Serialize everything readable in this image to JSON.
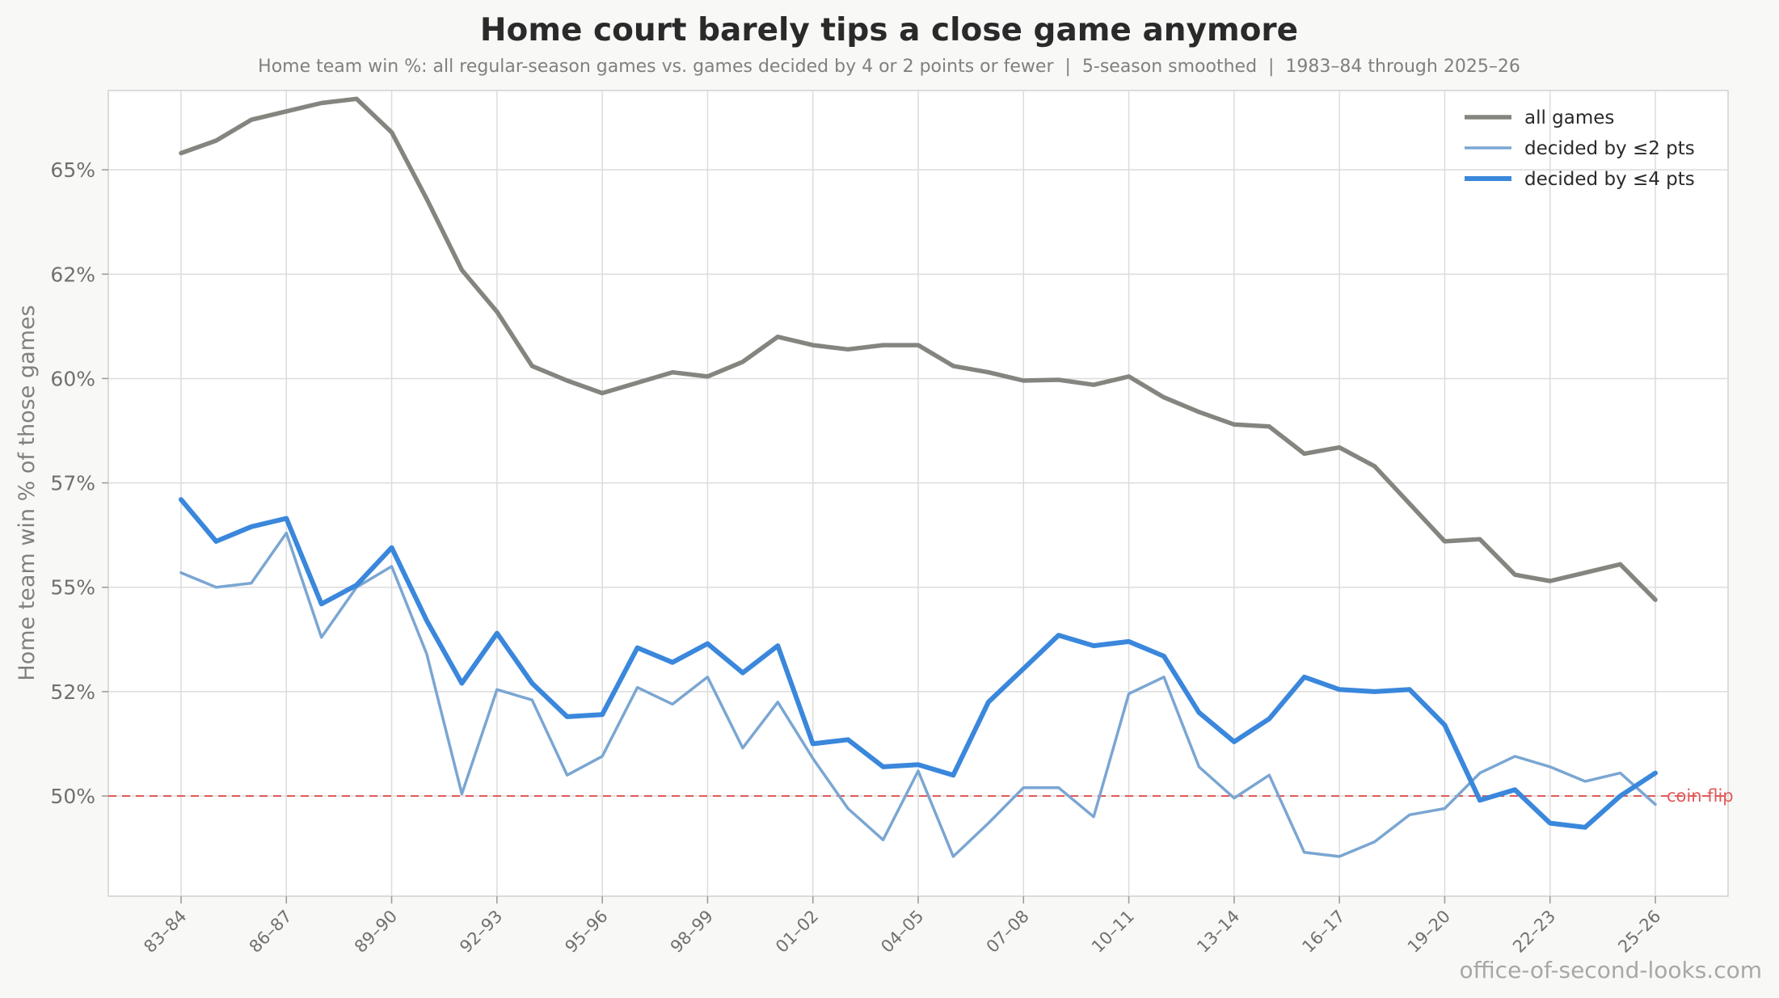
{
  "chart_data": {
    "type": "line",
    "title": "Home court barely tips a close game anymore",
    "subtitle": "Home team win %: all regular-season games vs. games decided by 4 or 2 points or fewer  |  5-season smoothed  |  1983–84 through 2025–26",
    "xlabel": "",
    "ylabel": "Home team win % of those games",
    "ylim": [
      47.6,
      66.9
    ],
    "grid": true,
    "legend_position": "top-right",
    "y_ticks": [
      {
        "value": 50.0,
        "label": "50%"
      },
      {
        "value": 52.5,
        "label": "52%"
      },
      {
        "value": 55.0,
        "label": "55%"
      },
      {
        "value": 57.5,
        "label": "57%"
      },
      {
        "value": 60.0,
        "label": "60%"
      },
      {
        "value": 62.5,
        "label": "62%"
      },
      {
        "value": 65.0,
        "label": "65%"
      }
    ],
    "x_tick_labels": [
      "83–84",
      "86–87",
      "89–90",
      "92–93",
      "95–96",
      "98–99",
      "01–02",
      "04–05",
      "07–08",
      "10–11",
      "13–14",
      "16–17",
      "19–20",
      "22–23",
      "25–26"
    ],
    "x_tick_every": 3,
    "season_count": 43,
    "series": [
      {
        "name": "all games",
        "color": "#858580",
        "width": 5.5,
        "values": [
          65.4,
          65.7,
          66.2,
          66.4,
          66.6,
          66.7,
          65.9,
          64.3,
          62.6,
          61.6,
          60.3,
          59.95,
          59.65,
          59.9,
          60.15,
          60.05,
          60.4,
          61.0,
          60.8,
          60.7,
          60.8,
          60.8,
          60.3,
          60.15,
          59.95,
          59.97,
          59.85,
          60.05,
          59.55,
          59.2,
          58.9,
          58.85,
          58.2,
          58.35,
          57.9,
          57.0,
          56.1,
          56.15,
          55.3,
          55.15,
          55.35,
          55.55,
          54.7
        ]
      },
      {
        "name": "decided by ≤2 pts",
        "color": "#7aa6d2",
        "width": 3.5,
        "values": [
          55.35,
          55.0,
          55.1,
          56.3,
          53.8,
          55.0,
          55.5,
          53.4,
          50.05,
          52.55,
          52.3,
          50.5,
          50.95,
          52.6,
          52.2,
          52.85,
          51.15,
          52.25,
          50.9,
          49.7,
          48.95,
          50.6,
          48.55,
          49.35,
          50.2,
          50.2,
          49.5,
          52.45,
          52.85,
          50.7,
          49.95,
          50.5,
          48.65,
          48.55,
          48.9,
          49.55,
          49.7,
          50.55,
          50.95,
          50.7,
          50.35,
          50.55,
          49.8
        ]
      },
      {
        "name": "decided by ≤4 pts",
        "color": "#3a87dc",
        "width": 6,
        "values": [
          57.1,
          56.1,
          56.45,
          56.65,
          54.6,
          55.05,
          55.95,
          54.2,
          52.7,
          53.9,
          52.7,
          51.9,
          51.95,
          53.55,
          53.2,
          53.65,
          52.95,
          53.6,
          51.25,
          51.35,
          50.7,
          50.75,
          50.5,
          52.25,
          53.05,
          53.85,
          53.6,
          53.7,
          53.35,
          52.0,
          51.3,
          51.85,
          52.85,
          52.55,
          52.5,
          52.55,
          51.7,
          49.9,
          50.15,
          49.35,
          49.25,
          50.0,
          50.55
        ]
      }
    ],
    "reference_line": {
      "value": 50.0,
      "label": "coin flip",
      "color": "#e05a5a"
    },
    "watermark": "office-of-second-looks.com"
  }
}
